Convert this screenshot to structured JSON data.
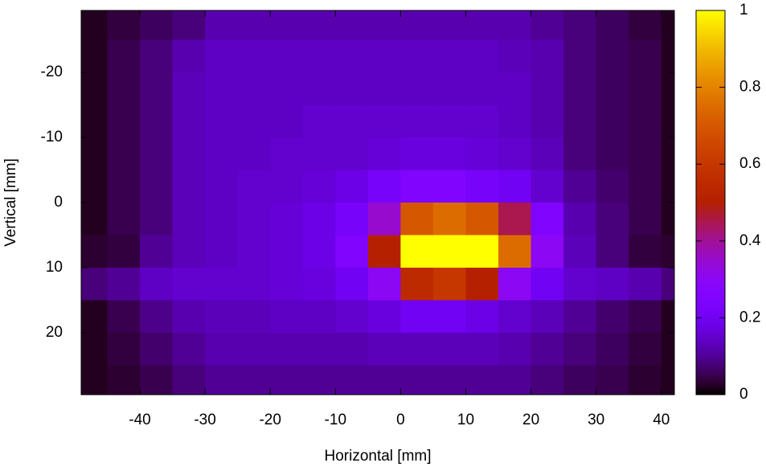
{
  "chart_data": {
    "type": "heatmap",
    "colormap": "gnuplot",
    "x_label": "Horizontal [mm]",
    "y_label": "Vertical [mm]",
    "x": [
      -47.5,
      -42.5,
      -37.5,
      -32.5,
      -27.5,
      -22.5,
      -17.5,
      -12.5,
      -7.5,
      -2.5,
      2.5,
      7.5,
      12.5,
      17.5,
      22.5,
      27.5,
      32.5,
      37.5,
      42.5
    ],
    "y": [
      -27.5,
      -22.5,
      -17.5,
      -12.5,
      -7.5,
      -2.5,
      2.5,
      7.5,
      12.5,
      17.5,
      22.5,
      27.5
    ],
    "z": [
      [
        0.02,
        0.04,
        0.06,
        0.08,
        0.12,
        0.12,
        0.12,
        0.12,
        0.12,
        0.12,
        0.12,
        0.12,
        0.12,
        0.12,
        0.1,
        0.08,
        0.06,
        0.04,
        0.02
      ],
      [
        0.02,
        0.05,
        0.08,
        0.12,
        0.14,
        0.14,
        0.14,
        0.14,
        0.14,
        0.14,
        0.14,
        0.14,
        0.14,
        0.13,
        0.12,
        0.08,
        0.06,
        0.05,
        0.02
      ],
      [
        0.02,
        0.05,
        0.08,
        0.13,
        0.14,
        0.14,
        0.14,
        0.14,
        0.14,
        0.14,
        0.14,
        0.14,
        0.14,
        0.14,
        0.12,
        0.08,
        0.06,
        0.05,
        0.02
      ],
      [
        0.02,
        0.05,
        0.08,
        0.13,
        0.14,
        0.14,
        0.14,
        0.15,
        0.15,
        0.15,
        0.15,
        0.15,
        0.15,
        0.14,
        0.12,
        0.08,
        0.06,
        0.05,
        0.02
      ],
      [
        0.02,
        0.05,
        0.08,
        0.13,
        0.14,
        0.14,
        0.15,
        0.15,
        0.15,
        0.16,
        0.17,
        0.17,
        0.16,
        0.15,
        0.13,
        0.08,
        0.06,
        0.05,
        0.02
      ],
      [
        0.02,
        0.05,
        0.08,
        0.13,
        0.14,
        0.15,
        0.15,
        0.16,
        0.18,
        0.22,
        0.25,
        0.25,
        0.22,
        0.2,
        0.15,
        0.1,
        0.07,
        0.05,
        0.02
      ],
      [
        0.02,
        0.05,
        0.08,
        0.13,
        0.14,
        0.15,
        0.16,
        0.18,
        0.22,
        0.35,
        0.7,
        0.75,
        0.7,
        0.45,
        0.25,
        0.12,
        0.08,
        0.05,
        0.02
      ],
      [
        0.03,
        0.04,
        0.1,
        0.13,
        0.14,
        0.15,
        0.16,
        0.18,
        0.25,
        0.5,
        1,
        1,
        1,
        0.75,
        0.3,
        0.13,
        0.08,
        0.04,
        0.03
      ],
      [
        0.08,
        0.1,
        0.14,
        0.15,
        0.15,
        0.15,
        0.16,
        0.17,
        0.2,
        0.3,
        0.55,
        0.6,
        0.5,
        0.3,
        0.2,
        0.15,
        0.14,
        0.12,
        0.08
      ],
      [
        0.02,
        0.05,
        0.09,
        0.12,
        0.13,
        0.13,
        0.14,
        0.14,
        0.15,
        0.17,
        0.2,
        0.2,
        0.18,
        0.15,
        0.13,
        0.1,
        0.07,
        0.05,
        0.02
      ],
      [
        0.02,
        0.04,
        0.07,
        0.1,
        0.12,
        0.12,
        0.12,
        0.12,
        0.12,
        0.13,
        0.13,
        0.13,
        0.13,
        0.12,
        0.1,
        0.08,
        0.06,
        0.04,
        0.02
      ],
      [
        0.02,
        0.03,
        0.05,
        0.08,
        0.1,
        0.1,
        0.1,
        0.1,
        0.1,
        0.1,
        0.1,
        0.1,
        0.1,
        0.1,
        0.08,
        0.06,
        0.05,
        0.03,
        0.02
      ]
    ],
    "xlim": [
      -49,
      42
    ],
    "ylim": [
      -29.5,
      29.5
    ],
    "xticks": [
      -40,
      -30,
      -20,
      -10,
      0,
      10,
      20,
      30,
      40
    ],
    "yticks": [
      -20,
      -10,
      0,
      10,
      20
    ],
    "zlim": [
      0,
      1
    ],
    "zticks": [
      0,
      0.2,
      0.4,
      0.6,
      0.8,
      1
    ]
  }
}
